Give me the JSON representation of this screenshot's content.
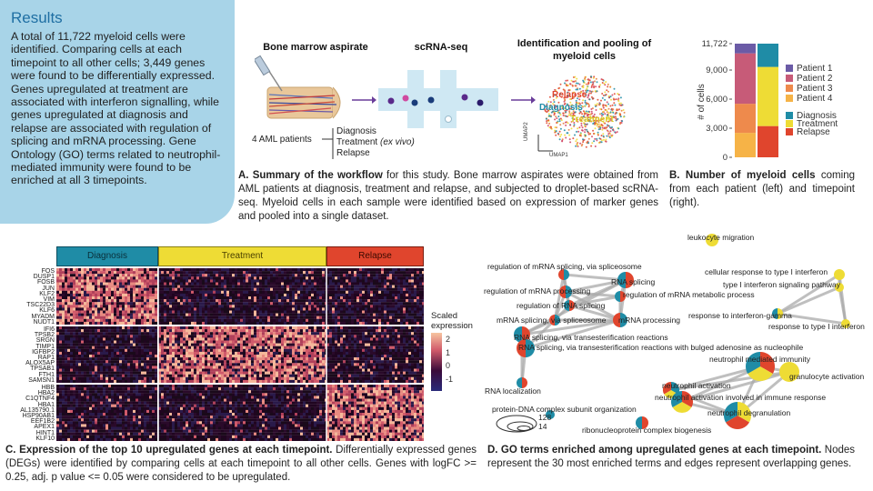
{
  "results": {
    "title": "Results",
    "text": "A total of 11,722 myeloid cells were identified. Comparing cells at each timepoint to all other cells; 3,449 genes were found to be differentially expressed. Genes upregulated at treatment are associated with interferon signalling, while genes upregulated at diagnosis and relapse are associated with regulation of splicing and mRNA processing. Gene Ontology (GO) terms related to neutrophil-mediated immunity were found to be enriched at all 3 timepoints."
  },
  "panel_a": {
    "step1": "Bone marrow aspirate",
    "step2": "scRNA-seq",
    "step3": "Identification and pooling of myeloid cells",
    "patients": "4 AML patients",
    "timepoint_diag": "Diagnosis",
    "timepoint_treat": "Treatment",
    "timepoint_treat_note": "(ex vivo)",
    "timepoint_relapse": "Relapse",
    "umap_relapse": "Relapse",
    "umap_diagnosis": "Diagnosis",
    "umap_treatment": "Treatment",
    "umap_x": "UMAP1",
    "umap_y": "UMAP2",
    "caption_bold": "A. Summary of the workflow",
    "caption_rest": " for this study. Bone marrow aspirates were obtained from AML patients at diagnosis, treatment and relapse, and subjected to droplet-based scRNA-seq. Myeloid cells in each sample were identified based on expression of marker genes and pooled into a single dataset."
  },
  "panel_b": {
    "ylabel": "# of cells",
    "ticks": [
      "11,722",
      "9,000",
      "6,000",
      "3,000",
      "0"
    ],
    "legend_patients": [
      "Patient 1",
      "Patient 2",
      "Patient 3",
      "Patient 4"
    ],
    "legend_timepoints": [
      "Diagnosis",
      "Treatment",
      "Relapse"
    ],
    "caption_bold": "B. Number of myeloid cells",
    "caption_rest": " coming from each patient (left) and timepoint (right)."
  },
  "colors": {
    "patient1": "#6b5ba6",
    "patient2": "#c75b78",
    "patient3": "#ee8a4c",
    "patient4": "#f6b347",
    "diagnosis": "#1f8ca6",
    "treatment": "#eedc35",
    "relapse": "#e0452d",
    "results_bg": "#a8d4e8"
  },
  "chart_data": [
    {
      "type": "bar",
      "ylabel": "# of cells",
      "ylim": [
        0,
        11722
      ],
      "categories": [
        "patient",
        "timepoint"
      ],
      "series": [
        {
          "name": "Patient 1",
          "values": [
            1000,
            0
          ]
        },
        {
          "name": "Patient 2",
          "values": [
            5200,
            0
          ]
        },
        {
          "name": "Patient 3",
          "values": [
            3000,
            0
          ]
        },
        {
          "name": "Patient 4",
          "values": [
            2522,
            0
          ]
        },
        {
          "name": "Diagnosis",
          "values": [
            0,
            2400
          ]
        },
        {
          "name": "Treatment",
          "values": [
            0,
            6100
          ]
        },
        {
          "name": "Relapse",
          "values": [
            0,
            3222
          ]
        }
      ]
    }
  ],
  "panel_c": {
    "header_diag": "Diagnosis",
    "header_treat": "Treatment",
    "header_relapse": "Relapse",
    "legend_title": "Scaled expression",
    "legend_ticks": [
      "2",
      "1",
      "0",
      "-1"
    ],
    "genes_diag": [
      "FOS",
      "DUSP1",
      "FOSB",
      "JUN",
      "KLF2",
      "VIM",
      "TSC22D3",
      "KLF6",
      "MYADM",
      "NUDT1"
    ],
    "genes_treat": [
      "IFI6",
      "TPSB2",
      "SRGN",
      "TIMP1",
      "IGFBP2",
      "RAP1",
      "ALOX5AP",
      "TPSAB1",
      "FTH1",
      "SAMSN1"
    ],
    "genes_relapse": [
      "HBB",
      "HBA2",
      "C1QTNF4",
      "HBA1",
      "AL135790.1",
      "HSP90AB1",
      "EEF1B2",
      "APEX1",
      "HINT1",
      "KLF10"
    ],
    "caption_bold": "C. Expression of the top 10 upregulated genes at each timepoint.",
    "caption_rest": " Differentially expressed genes (DEGs) were identified by comparing cells at each timepoint to all other cells. Genes with logFC >= 0.25, adj. p value <= 0.05 were considered to be upregulated."
  },
  "panel_d": {
    "terms": {
      "t1": "leukocyte migration",
      "t2": "regulation of mRNA splicing, via spliceosome",
      "t3": "cellular response to type I interferon",
      "t4": "RNA splicing",
      "t5": "type I interferon signaling pathway",
      "t6": "regulation of mRNA processing",
      "t7": "regulation of mRNA metabolic process",
      "t8": "regulation of RNA splicing",
      "t9": "response to interferon-gamma",
      "t10": "mRNA splicing, via spliceosome",
      "t11": "mRNA processing",
      "t12": "response to type I interferon",
      "t13": "RNA splicing, via transesterification reactions",
      "t14": "RNA splicing, via transesterification reactions with bulged adenosine as nucleophile",
      "t15": "neutrophil mediated immunity",
      "t16": "granulocyte activation",
      "t17": "RNA localization",
      "t18": "neutrophil activation",
      "t19": "neutrophil activation involved in immune response",
      "t20": "protein-DNA complex subunit organization",
      "t21": "neutrophil degranulation",
      "t22": "ribonucleoprotein complex biogenesis"
    },
    "size_legend": [
      "128",
      "14"
    ],
    "caption_bold": "D. GO terms enriched among upregulated genes at each timepoint.",
    "caption_rest": " Nodes represent the 30 most enriched terms and edges represent overlapping genes."
  }
}
